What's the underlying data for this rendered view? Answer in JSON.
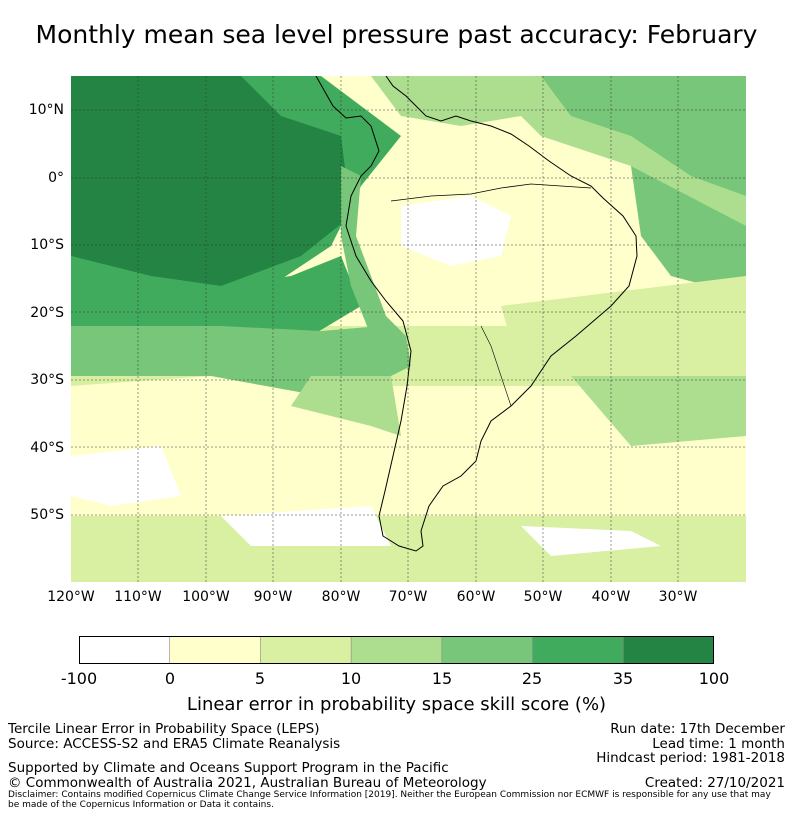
{
  "title": "Monthly mean sea level pressure past accuracy: February",
  "map": {
    "lat_labels": [
      "10°N",
      "0°",
      "10°S",
      "20°S",
      "30°S",
      "40°S",
      "50°S"
    ],
    "lon_labels": [
      "120°W",
      "110°W",
      "100°W",
      "90°W",
      "80°W",
      "70°W",
      "60°W",
      "50°W",
      "40°W",
      "30°W"
    ]
  },
  "colorbar": {
    "bounds": [
      "-100",
      "0",
      "5",
      "10",
      "15",
      "25",
      "35",
      "100"
    ],
    "colors": [
      "#ffffff",
      "#ffffcc",
      "#d9f0a3",
      "#addd8e",
      "#78c679",
      "#41ab5d",
      "#238443"
    ],
    "label": "Linear error in probability space skill score (%)"
  },
  "footer": {
    "line1": "Tercile Linear Error in Probability Space (LEPS)",
    "line2": "Source: ACCESS-S2 and ERA5 Climate Reanalysis",
    "support": "Supported by Climate and Oceans Support Program in the Pacific",
    "copyright": "© Commonwealth of Australia 2021, Australian Bureau of Meteorology",
    "run_date": "Run date: 17th December",
    "lead_time": "Lead time: 1 month",
    "hindcast": "Hindcast period: 1981-2018",
    "created": "Created: 27/10/2021",
    "disclaimer1": "Disclaimer: Contains modified Copernicus Climate Change Service Information [2019]. Neither the European Commission nor ECMWF is responsible for any use that may",
    "disclaimer2": "be made of the Copernicus Information or Data it contains."
  }
}
